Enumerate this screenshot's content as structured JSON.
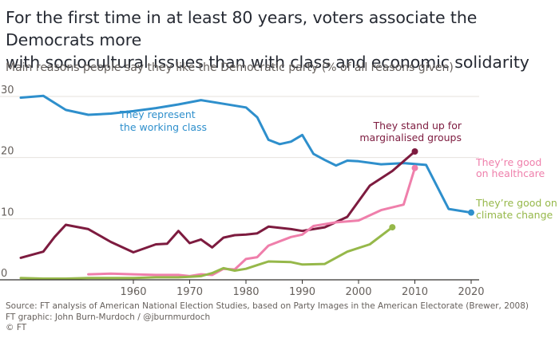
{
  "header": {
    "title_line1": "For the first time in at least 80 years, voters associate the Democrats more",
    "title_line2": "with sociocultural issues than with class and economic solidarity",
    "subtitle": "Main reasons people say they like the Democratic party (% of all reasons given)"
  },
  "footer": {
    "source": "Source: FT analysis of American National Election Studies, based on Party Images in the American Electorate (Brewer, 2008)",
    "graphic": "FT graphic: John Burn-Murdoch / @jburnmurdoch",
    "copyright": "© FT"
  },
  "chart_data": {
    "type": "line",
    "title": "For the first time in at least 80 years, voters associate the Democrats more with sociocultural issues than with class and economic solidarity",
    "subtitle": "Main reasons people say they like the Democratic party (% of all reasons given)",
    "xlabel": "",
    "ylabel": "",
    "xlim": [
      1940,
      2020
    ],
    "ylim": [
      0,
      30
    ],
    "x_ticks": [
      1960,
      1970,
      1980,
      1990,
      2000,
      2010,
      2020
    ],
    "y_ticks": [
      0,
      10,
      20,
      30
    ],
    "grid": true,
    "series": [
      {
        "name": "They represent the working class",
        "label_lines": [
          "They represent",
          "the working class"
        ],
        "color": "#2e8fcc",
        "points": [
          [
            1940,
            29.8
          ],
          [
            1944,
            30.1
          ],
          [
            1948,
            27.8
          ],
          [
            1952,
            27.0
          ],
          [
            1956,
            27.2
          ],
          [
            1960,
            27.6
          ],
          [
            1964,
            28.1
          ],
          [
            1968,
            28.7
          ],
          [
            1972,
            29.4
          ],
          [
            1976,
            28.8
          ],
          [
            1980,
            28.2
          ],
          [
            1982,
            26.6
          ],
          [
            1984,
            22.9
          ],
          [
            1986,
            22.2
          ],
          [
            1988,
            22.6
          ],
          [
            1990,
            23.7
          ],
          [
            1992,
            20.6
          ],
          [
            1994,
            19.6
          ],
          [
            1996,
            18.7
          ],
          [
            1998,
            19.5
          ],
          [
            2000,
            19.4
          ],
          [
            2004,
            18.9
          ],
          [
            2008,
            19.1
          ],
          [
            2012,
            18.8
          ],
          [
            2016,
            11.6
          ],
          [
            2020,
            11.0
          ]
        ]
      },
      {
        "name": "They stand up for marginalised groups",
        "label_lines": [
          "They stand up for",
          "marginalised groups"
        ],
        "color": "#7d1b3f",
        "points": [
          [
            1940,
            3.6
          ],
          [
            1944,
            4.6
          ],
          [
            1946,
            7.0
          ],
          [
            1948,
            9.0
          ],
          [
            1952,
            8.3
          ],
          [
            1956,
            6.2
          ],
          [
            1960,
            4.5
          ],
          [
            1964,
            5.8
          ],
          [
            1966,
            5.9
          ],
          [
            1968,
            8.0
          ],
          [
            1970,
            6.0
          ],
          [
            1972,
            6.6
          ],
          [
            1974,
            5.3
          ],
          [
            1976,
            6.9
          ],
          [
            1978,
            7.3
          ],
          [
            1980,
            7.4
          ],
          [
            1982,
            7.6
          ],
          [
            1984,
            8.7
          ],
          [
            1988,
            8.3
          ],
          [
            1990,
            8.0
          ],
          [
            1994,
            8.6
          ],
          [
            1998,
            10.3
          ],
          [
            2002,
            15.4
          ],
          [
            2006,
            17.8
          ],
          [
            2010,
            21.0
          ]
        ]
      },
      {
        "name": "They're good on healthcare",
        "label_lines": [
          "They’re good",
          "on healthcare"
        ],
        "color": "#ef7fab",
        "points": [
          [
            1952,
            0.9
          ],
          [
            1956,
            1.0
          ],
          [
            1960,
            0.9
          ],
          [
            1964,
            0.8
          ],
          [
            1968,
            0.8
          ],
          [
            1970,
            0.6
          ],
          [
            1972,
            0.9
          ],
          [
            1974,
            0.8
          ],
          [
            1976,
            1.8
          ],
          [
            1978,
            1.7
          ],
          [
            1980,
            3.4
          ],
          [
            1982,
            3.7
          ],
          [
            1984,
            5.6
          ],
          [
            1986,
            6.3
          ],
          [
            1988,
            7.0
          ],
          [
            1990,
            7.4
          ],
          [
            1992,
            8.8
          ],
          [
            1996,
            9.4
          ],
          [
            2000,
            9.7
          ],
          [
            2004,
            11.4
          ],
          [
            2008,
            12.3
          ],
          [
            2010,
            18.3
          ]
        ]
      },
      {
        "name": "They're good on climate change",
        "label_lines": [
          "They’re good on",
          "climate change"
        ],
        "color": "#96b84a",
        "points": [
          [
            1940,
            0.3
          ],
          [
            1944,
            0.2
          ],
          [
            1948,
            0.2
          ],
          [
            1952,
            0.3
          ],
          [
            1956,
            0.3
          ],
          [
            1960,
            0.3
          ],
          [
            1964,
            0.4
          ],
          [
            1968,
            0.4
          ],
          [
            1970,
            0.5
          ],
          [
            1972,
            0.6
          ],
          [
            1974,
            1.1
          ],
          [
            1976,
            1.9
          ],
          [
            1978,
            1.5
          ],
          [
            1980,
            1.8
          ],
          [
            1982,
            2.4
          ],
          [
            1984,
            3.0
          ],
          [
            1988,
            2.9
          ],
          [
            1990,
            2.5
          ],
          [
            1994,
            2.6
          ],
          [
            1998,
            4.6
          ],
          [
            2002,
            5.8
          ],
          [
            2006,
            8.6
          ]
        ]
      }
    ]
  }
}
